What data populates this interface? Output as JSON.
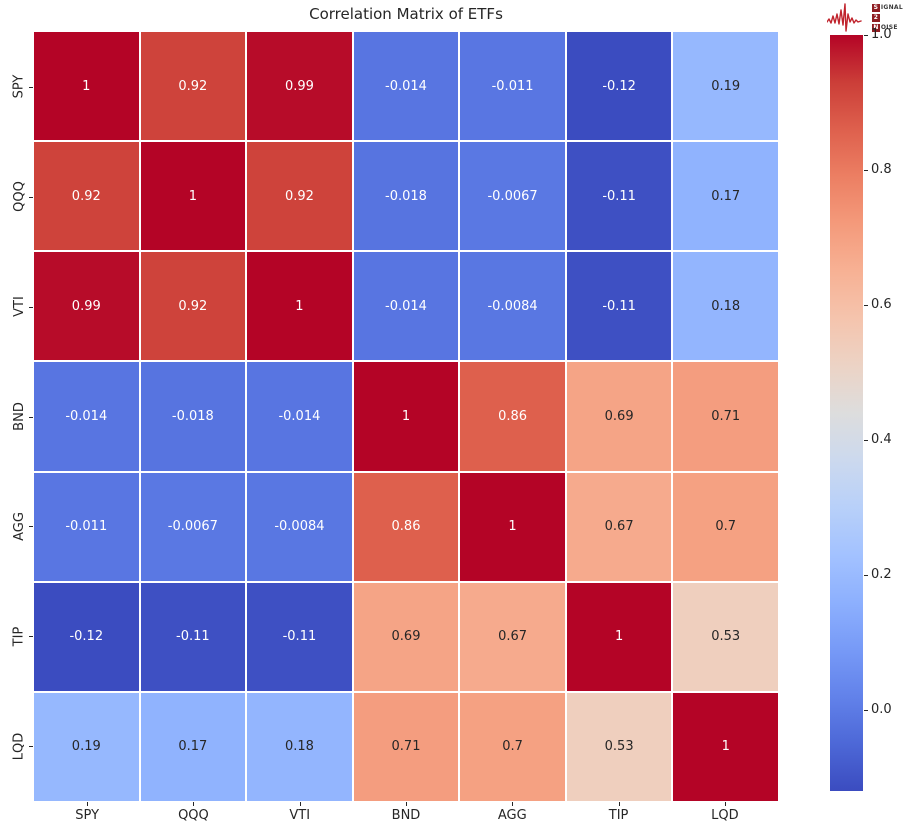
{
  "chart_data": {
    "type": "heatmap",
    "title": "Correlation Matrix of ETFs",
    "labels": [
      "SPY",
      "QQQ",
      "VTI",
      "BND",
      "AGG",
      "TIP",
      "LQD"
    ],
    "matrix": [
      [
        1,
        0.92,
        0.99,
        -0.014,
        -0.011,
        -0.12,
        0.19
      ],
      [
        0.92,
        1,
        0.92,
        -0.018,
        -0.0067,
        -0.11,
        0.17
      ],
      [
        0.99,
        0.92,
        1,
        -0.014,
        -0.0084,
        -0.11,
        0.18
      ],
      [
        -0.014,
        -0.018,
        -0.014,
        1,
        0.86,
        0.69,
        0.71
      ],
      [
        -0.011,
        -0.0067,
        -0.0084,
        0.86,
        1,
        0.67,
        0.7
      ],
      [
        -0.12,
        -0.11,
        -0.11,
        0.69,
        0.67,
        1,
        0.53
      ],
      [
        0.19,
        0.17,
        0.18,
        0.71,
        0.7,
        0.53,
        1
      ]
    ],
    "vmin": -0.12,
    "vmax": 1.0,
    "colormap_name": "coolwarm",
    "colormap_stops": [
      "#3B4CC0",
      "#4D68D7",
      "#6282EA",
      "#779AF7",
      "#8DB0FE",
      "#A3C2FF",
      "#B8D0F9",
      "#CCD9EE",
      "#DDDDDD",
      "#ECD3C5",
      "#F5C4AD",
      "#F7B194",
      "#F49A7B",
      "#EC7F63",
      "#DE604D",
      "#CB3E38",
      "#B40426"
    ],
    "gridline_color": "#ffffff",
    "annotation_colors": {
      "on_dark": "#ffffff",
      "on_light": "#262626"
    },
    "legend_position": "right-colorbar",
    "colorbar_ticks": [
      {
        "label": "1.0",
        "value": 1.0
      },
      {
        "label": "0.8",
        "value": 0.8
      },
      {
        "label": "0.6",
        "value": 0.6
      },
      {
        "label": "0.4",
        "value": 0.4
      },
      {
        "label": "0.2",
        "value": 0.2
      },
      {
        "label": "0.0",
        "value": 0.0
      }
    ]
  },
  "logo": {
    "line1": {
      "boxed": "S",
      "rest": "IGNAL"
    },
    "line2": {
      "boxed": "2",
      "rest": ""
    },
    "line3": {
      "boxed": "N",
      "rest": "OISE"
    },
    "waveform_color": "#c0232c",
    "box_color": "#8f1d22"
  }
}
